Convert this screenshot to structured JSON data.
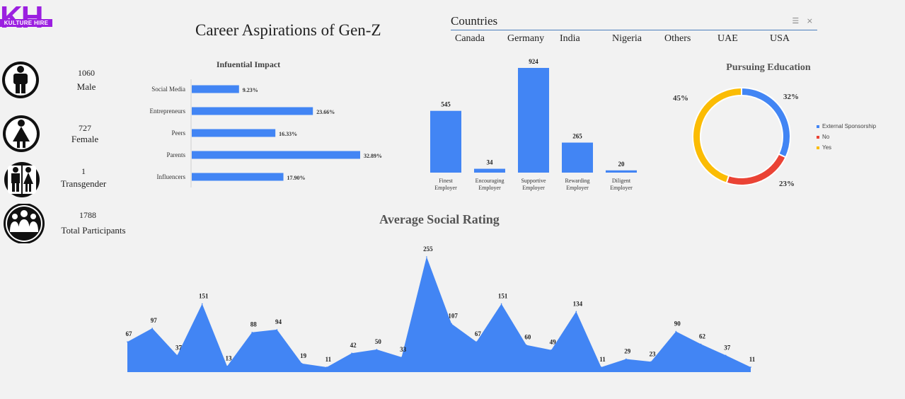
{
  "logo": {
    "letters": "KH",
    "band": "KULTURE HIRE"
  },
  "title": "Career Aspirations of Gen-Z",
  "slicer": {
    "header": "Countries",
    "items": [
      "Canada",
      "Germany",
      "India",
      "Nigeria",
      "Others",
      "UAE",
      "USA"
    ]
  },
  "stats": [
    {
      "value": "1060",
      "label": "Male",
      "icon": "male-icon"
    },
    {
      "value": "727",
      "label": "Female",
      "icon": "female-icon"
    },
    {
      "value": "1",
      "label": "Transgender",
      "icon": "transgender-icon"
    },
    {
      "value": "1788",
      "label": "Total Participants",
      "icon": "group-icon"
    }
  ],
  "chart_data": [
    {
      "type": "bar",
      "orientation": "horizontal",
      "title": "Infuential Impact",
      "categories": [
        "Social Media",
        "Entrepreneurs",
        "Peers",
        "Parents",
        "Influencers"
      ],
      "values": [
        9.23,
        23.66,
        16.33,
        32.89,
        17.9
      ],
      "value_labels": [
        "9.23%",
        "23.66%",
        "16.33%",
        "32.89%",
        "17.90%"
      ],
      "color": "#4285f4"
    },
    {
      "type": "bar",
      "title": "",
      "categories": [
        "Finest Employer",
        "Encouraging Employer",
        "Supportive Employer",
        "Rewarding Employer",
        "Diligent Employer"
      ],
      "values": [
        545,
        34,
        924,
        265,
        20
      ],
      "color": "#4285f4"
    },
    {
      "type": "pie",
      "donut": true,
      "title": "Pursuing Education",
      "labels": [
        "External Sponsorship",
        "No",
        "Yes"
      ],
      "values": [
        32,
        23,
        45
      ],
      "value_labels": [
        "32%",
        "23%",
        "45%"
      ],
      "colors": [
        "#4285f4",
        "#ea4335",
        "#fbbc04"
      ],
      "legend": "right"
    },
    {
      "type": "area",
      "title": "Average Social Rating",
      "values": [
        67,
        97,
        37,
        151,
        13,
        88,
        94,
        19,
        11,
        42,
        50,
        33,
        255,
        107,
        67,
        151,
        60,
        49,
        134,
        11,
        29,
        23,
        90,
        62,
        37,
        11
      ],
      "color": "#4285f4"
    }
  ]
}
